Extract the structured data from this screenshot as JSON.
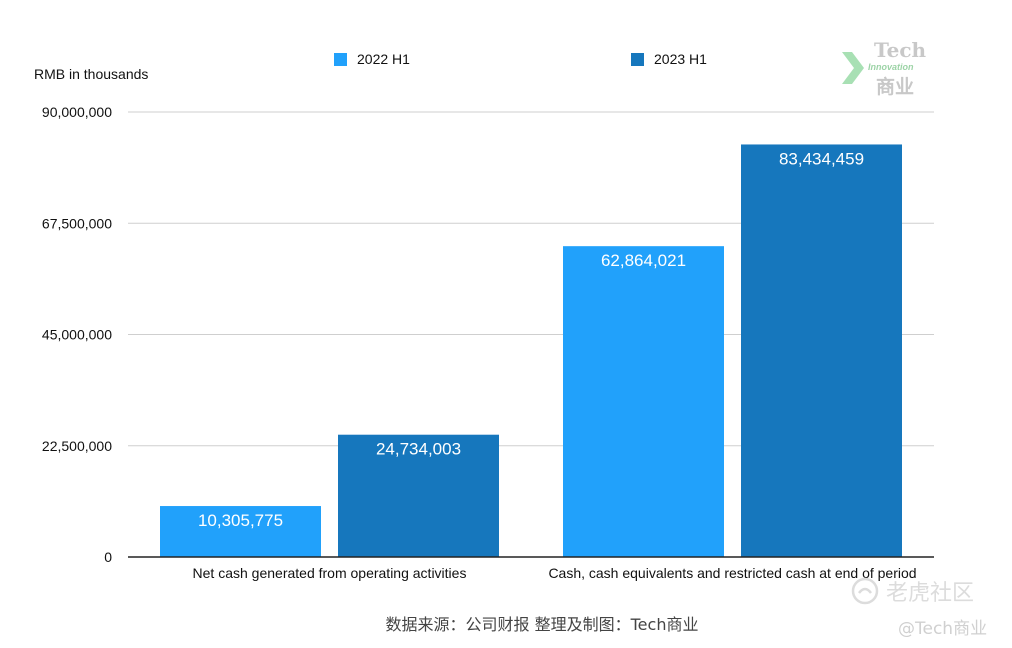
{
  "chart_data": {
    "type": "bar",
    "categories": [
      "Net cash generated from operating activities",
      "Cash, cash equivalents and restricted cash at end of period"
    ],
    "series": [
      {
        "name": "2022 H1",
        "color": "#21a1fb",
        "values": [
          10305775,
          62864021
        ],
        "labels": [
          "10,305,775",
          "62,864,021"
        ]
      },
      {
        "name": "2023 H1",
        "color": "#1677bd",
        "values": [
          24734003,
          83434459
        ],
        "labels": [
          "24,734,003",
          "83,434,459"
        ]
      }
    ],
    "ylabel": "RMB in thousands",
    "ylim": [
      0,
      90000000
    ],
    "yticks": [
      0,
      22500000,
      45000000,
      67500000,
      90000000
    ],
    "ytick_labels": [
      "0",
      "22,500,000",
      "45,000,000",
      "67,500,000",
      "90,000,000"
    ],
    "grid": true,
    "legend_position": "top"
  },
  "source_text": "数据来源：公司财报 整理及制图：Tech商业",
  "watermark": {
    "logo_tech": "Tech",
    "logo_innovation": "Innovation",
    "logo_cn": "商业",
    "community": "老虎社区",
    "handle": "@Tech商业"
  }
}
